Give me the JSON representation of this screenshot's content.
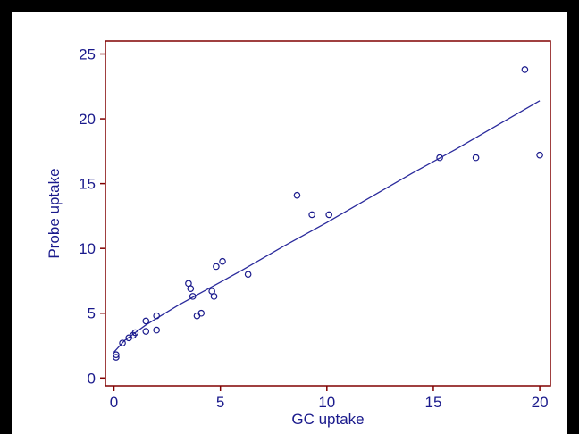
{
  "colors": {
    "frame": "#000000",
    "axes": "#800000",
    "text": "#1a1a8c",
    "points": "#1a1a8c",
    "fit_line": "#2a2a9c",
    "background": "#ffffff"
  },
  "chart_data": {
    "type": "scatter",
    "title": "",
    "xlabel": "GC uptake",
    "ylabel": "Probe uptake",
    "xlim": [
      -0.4,
      20.5
    ],
    "ylim": [
      -0.6,
      26
    ],
    "xticks": [
      0,
      5,
      10,
      15,
      20
    ],
    "yticks": [
      0,
      5,
      10,
      15,
      20,
      25
    ],
    "grid": false,
    "legend": "none",
    "series": [
      {
        "marker": "open-circle",
        "points": [
          [
            0.1,
            1.6
          ],
          [
            0.1,
            1.8
          ],
          [
            0.4,
            2.7
          ],
          [
            0.7,
            3.1
          ],
          [
            0.9,
            3.3
          ],
          [
            1.0,
            3.5
          ],
          [
            1.5,
            3.6
          ],
          [
            1.5,
            4.4
          ],
          [
            2.0,
            3.7
          ],
          [
            2.0,
            4.8
          ],
          [
            3.5,
            7.3
          ],
          [
            3.6,
            6.9
          ],
          [
            3.7,
            6.3
          ],
          [
            3.9,
            4.8
          ],
          [
            4.1,
            5.0
          ],
          [
            4.6,
            6.7
          ],
          [
            4.7,
            6.3
          ],
          [
            4.8,
            8.6
          ],
          [
            5.1,
            9.0
          ],
          [
            6.3,
            8.0
          ],
          [
            8.6,
            14.1
          ],
          [
            9.3,
            12.6
          ],
          [
            10.1,
            12.6
          ],
          [
            15.3,
            17.0
          ],
          [
            17.0,
            17.0
          ],
          [
            19.3,
            23.8
          ],
          [
            20.0,
            17.2
          ]
        ]
      }
    ],
    "fit_line": {
      "type": "curve",
      "points": [
        [
          0.0,
          2.0
        ],
        [
          0.5,
          2.9
        ],
        [
          1.0,
          3.5
        ],
        [
          1.5,
          4.1
        ],
        [
          2.0,
          4.6
        ],
        [
          3.0,
          5.6
        ],
        [
          4.0,
          6.5
        ],
        [
          5.0,
          7.4
        ],
        [
          6.0,
          8.3
        ],
        [
          8.0,
          10.2
        ],
        [
          10.0,
          12.0
        ],
        [
          12.0,
          13.9
        ],
        [
          14.0,
          15.8
        ],
        [
          16.0,
          17.6
        ],
        [
          18.0,
          19.5
        ],
        [
          20.0,
          21.4
        ]
      ]
    }
  }
}
